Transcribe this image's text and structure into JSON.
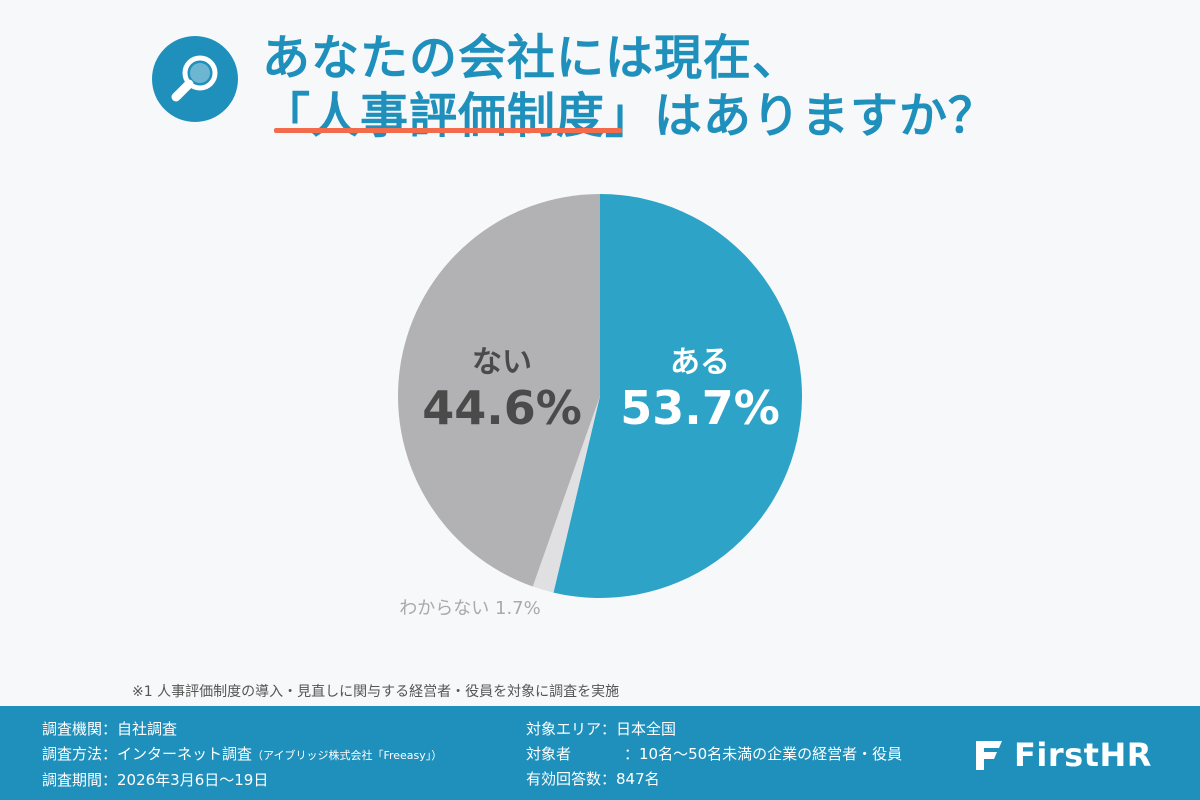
{
  "title": {
    "line1": "あなたの会社には現在、",
    "line2_open": "「",
    "line2_highlight": "人事評価制度",
    "line2_close": "」はありますか？"
  },
  "icons": {
    "title": "magnifier-icon",
    "brand": "firsthr-logo-icon"
  },
  "chart_data": {
    "type": "pie",
    "title": "あなたの会社には現在、「人事評価制度」はありますか？",
    "slices": [
      {
        "label": "ある",
        "value": 53.7,
        "value_label": "53.7%",
        "color": "#2ea3c8"
      },
      {
        "label": "わからない",
        "value": 1.7,
        "value_label": "1.7%",
        "color": "#e0e0e3"
      },
      {
        "label": "ない",
        "value": 44.6,
        "value_label": "44.6%",
        "color": "#b2b2b5"
      }
    ]
  },
  "footnote": "※1 人事評価制度の導入・見直しに関与する経営者・役員を対象に調査を実施",
  "survey": {
    "org": "調査機関：自社調査",
    "method": "調査方法：インターネット調査",
    "method_note": "（アイブリッジ株式会社「Freeasy」）",
    "period": "調査期間：2026年3月6日〜19日",
    "area": "対象エリア：日本全国",
    "target_label": "対象者",
    "target_value": "：10名〜50名未満の企業の経営者・役員",
    "responses": "有効回答数：847名"
  },
  "brand": {
    "name": "FirstHR"
  },
  "colors": {
    "accent": "#1f90bb",
    "underline": "#f26b4b",
    "background": "#f7f8f9"
  }
}
